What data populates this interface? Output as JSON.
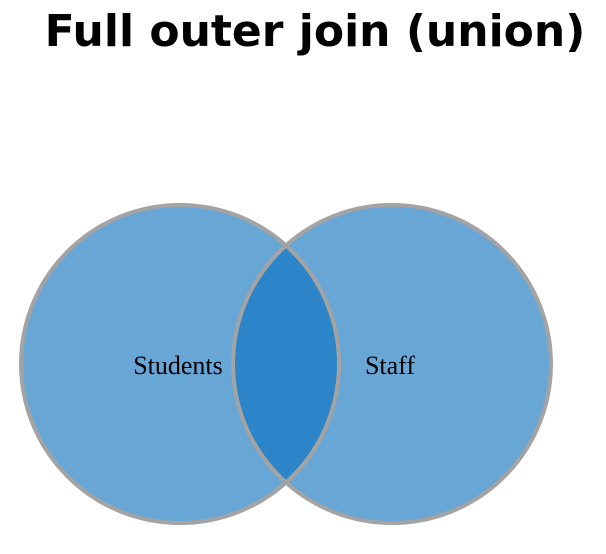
{
  "title": "Full outer join (union)",
  "diagram": {
    "type": "venn",
    "sets": [
      {
        "label": "Students"
      },
      {
        "label": "Staff"
      }
    ],
    "colors": {
      "circle_fill": "#68a6d6",
      "intersection_fill": "#2b85c8",
      "stroke": "#a3a3a3"
    }
  }
}
